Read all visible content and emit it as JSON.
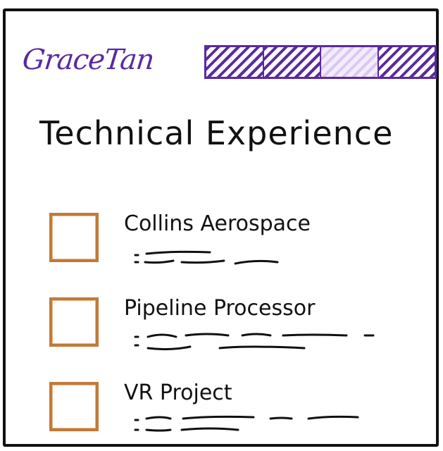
{
  "header": {
    "logo_text": "GraceTan",
    "nav_tab_count": 4,
    "active_tab_index": 3
  },
  "page": {
    "heading": "Technical Experience"
  },
  "experience": [
    {
      "title": "Collins Aerospace",
      "thumbnail_icon": "image-placeholder-icon"
    },
    {
      "title": "Pipeline Processor",
      "thumbnail_icon": "image-placeholder-icon"
    },
    {
      "title": "VR Project",
      "thumbnail_icon": "image-placeholder-icon"
    }
  ],
  "colors": {
    "accent": "#5a2aa0",
    "thumb_border": "#c07a3a",
    "text": "#111111"
  }
}
